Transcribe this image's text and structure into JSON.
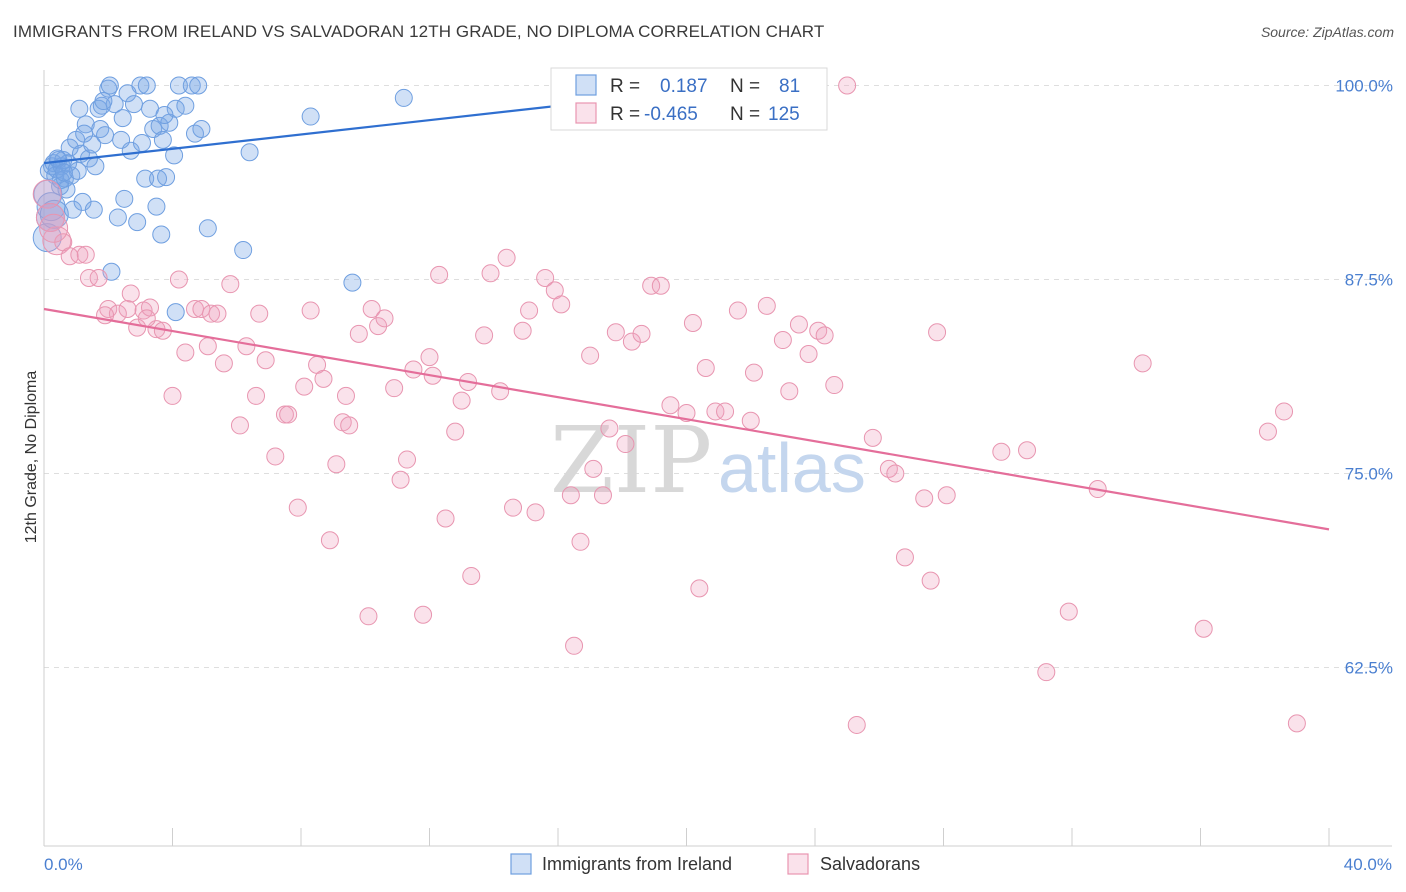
{
  "title": "IMMIGRANTS FROM IRELAND VS SALVADORAN 12TH GRADE, NO DIPLOMA CORRELATION CHART",
  "source": "Source: ZipAtlas.com",
  "watermark": {
    "zip": "ZIP",
    "atlas": "atlas"
  },
  "colors": {
    "blue": "#6f9fe0",
    "blue_fill": "rgba(120,165,230,0.35)",
    "blue_line": "#2f6fd0",
    "pink": "#e895b0",
    "pink_fill": "rgba(240,160,190,0.30)",
    "pink_line": "#e46e9a",
    "tick_label": "#4a7fd0"
  },
  "legend": {
    "rows": [
      {
        "r_label": "R =",
        "r_value": "0.187",
        "n_label": "N =",
        "n_value": "81"
      },
      {
        "r_label": "R =",
        "r_value": "-0.465",
        "n_label": "N =",
        "n_value": "125"
      }
    ]
  },
  "bottom_legend": [
    "Immigrants from Ireland",
    "Salvadorans"
  ],
  "chart_data": {
    "type": "scatter",
    "xlabel": "",
    "ylabel": "12th Grade, No Diploma",
    "xlim": [
      0,
      40
    ],
    "ylim": [
      51,
      101
    ],
    "x_tick_labels": [
      "0.0%",
      "40.0%"
    ],
    "y_ticks": [
      100,
      87.5,
      75,
      62.5
    ],
    "y_tick_labels": [
      "100.0%",
      "87.5%",
      "75.0%",
      "62.5%"
    ],
    "grid": "horizontal dashed",
    "legend_position": "top-center",
    "series": [
      {
        "name": "Immigrants from Ireland",
        "r": 0.187,
        "n": 81,
        "trend": [
          [
            0.0,
            95.0
          ],
          [
            19.5,
            99.5
          ]
        ],
        "points": [
          [
            0.1,
            90.2
          ],
          [
            0.15,
            94.5
          ],
          [
            0.2,
            91.5
          ],
          [
            0.25,
            94.8
          ],
          [
            0.3,
            95.0
          ],
          [
            0.35,
            94.2
          ],
          [
            0.4,
            94.6
          ],
          [
            0.45,
            95.2
          ],
          [
            0.5,
            93.5
          ],
          [
            0.55,
            94.8
          ],
          [
            0.6,
            95.2
          ],
          [
            0.65,
            94.0
          ],
          [
            0.7,
            93.3
          ],
          [
            0.75,
            95.0
          ],
          [
            0.8,
            96.0
          ],
          [
            0.85,
            94.2
          ],
          [
            0.9,
            92.0
          ],
          [
            1.0,
            96.5
          ],
          [
            1.05,
            94.5
          ],
          [
            1.1,
            98.5
          ],
          [
            1.15,
            95.6
          ],
          [
            1.2,
            92.5
          ],
          [
            1.3,
            97.5
          ],
          [
            1.4,
            95.3
          ],
          [
            1.5,
            96.2
          ],
          [
            1.6,
            94.8
          ],
          [
            1.7,
            98.5
          ],
          [
            1.75,
            97.2
          ],
          [
            1.8,
            98.7
          ],
          [
            1.9,
            96.8
          ],
          [
            2.0,
            99.8
          ],
          [
            2.1,
            88.0
          ],
          [
            2.2,
            98.8
          ],
          [
            2.3,
            91.5
          ],
          [
            2.4,
            96.5
          ],
          [
            2.5,
            92.7
          ],
          [
            2.6,
            99.5
          ],
          [
            2.7,
            95.8
          ],
          [
            2.8,
            98.8
          ],
          [
            2.9,
            91.2
          ],
          [
            3.0,
            100.0
          ],
          [
            3.15,
            94.0
          ],
          [
            3.2,
            100.0
          ],
          [
            3.3,
            98.5
          ],
          [
            3.4,
            97.2
          ],
          [
            3.5,
            92.2
          ],
          [
            3.55,
            94.0
          ],
          [
            3.6,
            97.4
          ],
          [
            3.65,
            90.4
          ],
          [
            3.7,
            96.5
          ],
          [
            3.8,
            94.1
          ],
          [
            3.9,
            97.6
          ],
          [
            4.1,
            85.4
          ],
          [
            4.1,
            98.5
          ],
          [
            4.2,
            100.0
          ],
          [
            4.4,
            98.7
          ],
          [
            4.6,
            100.0
          ],
          [
            4.7,
            96.9
          ],
          [
            4.8,
            100.0
          ],
          [
            4.9,
            97.2
          ],
          [
            5.1,
            90.8
          ],
          [
            6.2,
            89.4
          ],
          [
            6.4,
            95.7
          ],
          [
            8.3,
            98.0
          ],
          [
            9.6,
            87.3
          ],
          [
            11.2,
            99.2
          ],
          [
            18.0,
            100.0
          ],
          [
            0.12,
            93.0
          ],
          [
            0.22,
            92.2
          ],
          [
            0.32,
            91.7
          ],
          [
            0.42,
            95.3
          ],
          [
            0.52,
            93.9
          ],
          [
            0.62,
            94.4
          ],
          [
            1.25,
            96.9
          ],
          [
            1.55,
            92.0
          ],
          [
            1.85,
            99.0
          ],
          [
            2.05,
            100.0
          ],
          [
            2.45,
            97.9
          ],
          [
            3.05,
            96.3
          ],
          [
            3.75,
            98.1
          ],
          [
            4.05,
            95.5
          ]
        ]
      },
      {
        "name": "Salvadorans",
        "r": -0.465,
        "n": 125,
        "trend": [
          [
            0.0,
            85.6
          ],
          [
            40.0,
            71.4
          ]
        ],
        "points": [
          [
            0.1,
            93.0
          ],
          [
            0.2,
            91.5
          ],
          [
            0.4,
            90.0
          ],
          [
            0.6,
            89.9
          ],
          [
            0.8,
            89.0
          ],
          [
            1.1,
            89.1
          ],
          [
            1.3,
            89.1
          ],
          [
            1.4,
            87.6
          ],
          [
            1.7,
            87.6
          ],
          [
            2.0,
            85.6
          ],
          [
            2.3,
            85.3
          ],
          [
            2.6,
            85.6
          ],
          [
            2.7,
            86.6
          ],
          [
            2.9,
            84.4
          ],
          [
            3.1,
            85.5
          ],
          [
            3.3,
            85.7
          ],
          [
            3.5,
            84.3
          ],
          [
            3.7,
            84.2
          ],
          [
            4.0,
            80.0
          ],
          [
            4.2,
            87.5
          ],
          [
            4.4,
            82.8
          ],
          [
            4.7,
            85.6
          ],
          [
            4.9,
            85.6
          ],
          [
            5.1,
            83.2
          ],
          [
            5.2,
            85.3
          ],
          [
            5.6,
            82.1
          ],
          [
            5.8,
            87.2
          ],
          [
            6.1,
            78.1
          ],
          [
            6.3,
            83.2
          ],
          [
            6.6,
            80.0
          ],
          [
            6.7,
            85.3
          ],
          [
            6.9,
            82.3
          ],
          [
            7.2,
            76.1
          ],
          [
            7.5,
            78.8
          ],
          [
            7.6,
            78.8
          ],
          [
            7.9,
            72.8
          ],
          [
            8.1,
            80.6
          ],
          [
            8.3,
            85.5
          ],
          [
            8.5,
            82.0
          ],
          [
            8.7,
            81.1
          ],
          [
            8.9,
            70.7
          ],
          [
            9.1,
            75.6
          ],
          [
            9.3,
            78.3
          ],
          [
            9.5,
            78.1
          ],
          [
            9.8,
            84.0
          ],
          [
            10.1,
            65.8
          ],
          [
            10.2,
            85.6
          ],
          [
            10.4,
            84.5
          ],
          [
            10.6,
            85.0
          ],
          [
            10.9,
            80.5
          ],
          [
            11.1,
            74.6
          ],
          [
            11.3,
            75.9
          ],
          [
            11.5,
            81.7
          ],
          [
            11.8,
            65.9
          ],
          [
            12.1,
            81.3
          ],
          [
            12.3,
            87.8
          ],
          [
            12.5,
            72.1
          ],
          [
            12.8,
            77.7
          ],
          [
            13.0,
            79.7
          ],
          [
            13.2,
            80.9
          ],
          [
            13.3,
            68.4
          ],
          [
            13.7,
            83.9
          ],
          [
            13.9,
            87.9
          ],
          [
            14.2,
            80.3
          ],
          [
            14.4,
            88.9
          ],
          [
            14.6,
            72.8
          ],
          [
            14.9,
            84.2
          ],
          [
            15.1,
            85.5
          ],
          [
            15.3,
            72.5
          ],
          [
            15.6,
            87.6
          ],
          [
            15.9,
            86.8
          ],
          [
            16.1,
            85.9
          ],
          [
            16.4,
            73.6
          ],
          [
            16.5,
            63.9
          ],
          [
            16.7,
            70.6
          ],
          [
            17.0,
            82.6
          ],
          [
            17.1,
            75.3
          ],
          [
            17.4,
            73.6
          ],
          [
            17.6,
            77.9
          ],
          [
            17.8,
            84.1
          ],
          [
            18.1,
            76.9
          ],
          [
            18.3,
            83.5
          ],
          [
            18.6,
            84.0
          ],
          [
            18.9,
            87.1
          ],
          [
            19.2,
            87.1
          ],
          [
            19.5,
            79.4
          ],
          [
            20.0,
            78.9
          ],
          [
            20.2,
            84.7
          ],
          [
            20.4,
            67.6
          ],
          [
            20.6,
            81.8
          ],
          [
            20.9,
            79.0
          ],
          [
            21.2,
            79.0
          ],
          [
            21.6,
            85.5
          ],
          [
            22.0,
            78.4
          ],
          [
            22.1,
            81.5
          ],
          [
            22.5,
            85.8
          ],
          [
            23.0,
            83.6
          ],
          [
            23.2,
            80.3
          ],
          [
            23.5,
            84.6
          ],
          [
            23.8,
            82.7
          ],
          [
            24.1,
            84.2
          ],
          [
            24.3,
            83.9
          ],
          [
            24.6,
            80.7
          ],
          [
            25.0,
            100.0
          ],
          [
            25.3,
            58.8
          ],
          [
            25.8,
            77.3
          ],
          [
            26.3,
            75.3
          ],
          [
            26.5,
            75.0
          ],
          [
            26.8,
            69.6
          ],
          [
            27.4,
            73.4
          ],
          [
            27.6,
            68.1
          ],
          [
            27.8,
            84.1
          ],
          [
            28.1,
            73.6
          ],
          [
            29.8,
            76.4
          ],
          [
            30.6,
            76.5
          ],
          [
            31.2,
            62.2
          ],
          [
            31.9,
            66.1
          ],
          [
            32.8,
            74.0
          ],
          [
            34.2,
            82.1
          ],
          [
            36.1,
            65.0
          ],
          [
            38.1,
            77.7
          ],
          [
            38.6,
            79.0
          ],
          [
            39.0,
            58.9
          ],
          [
            0.3,
            90.8
          ],
          [
            1.9,
            85.2
          ],
          [
            3.2,
            85.0
          ],
          [
            5.4,
            85.3
          ],
          [
            12.0,
            82.5
          ],
          [
            9.4,
            80.0
          ]
        ]
      }
    ]
  }
}
